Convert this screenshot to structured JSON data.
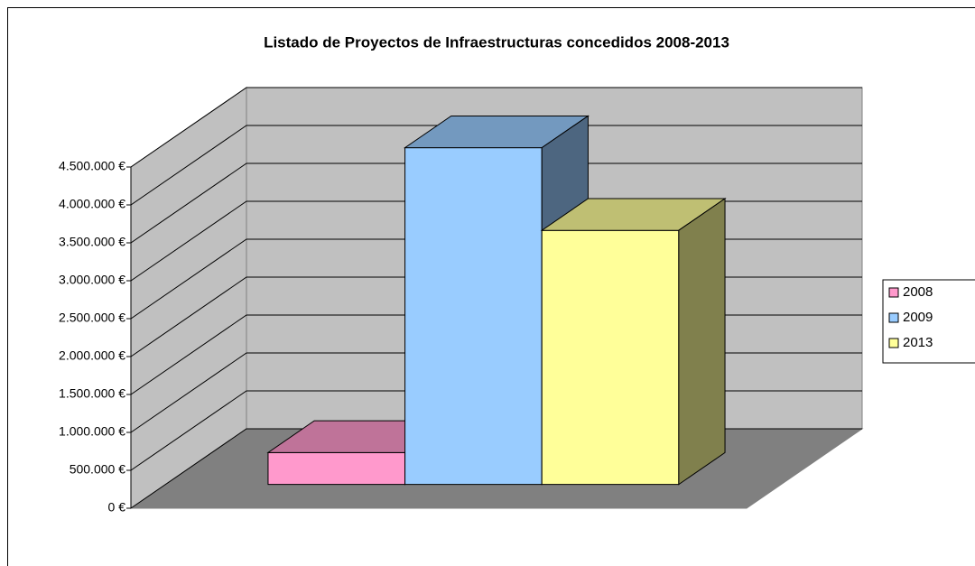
{
  "chart_data": {
    "type": "bar3d",
    "title": "Listado de Proyectos de Infraestructuras concedidos 2008-2013",
    "categories": [
      null
    ],
    "series": [
      {
        "name": "2008",
        "color": "#ff99cc",
        "values": [
          420000
        ]
      },
      {
        "name": "2009",
        "color": "#99ccff",
        "values": [
          4440000
        ]
      },
      {
        "name": "2013",
        "color": "#ffff99",
        "values": [
          3350000
        ]
      }
    ],
    "ylim": [
      0,
      4500000
    ],
    "yticks": [
      {
        "value": 0,
        "label": "0 €"
      },
      {
        "value": 500000,
        "label": "500.000 €"
      },
      {
        "value": 1000000,
        "label": "1.000.000 €"
      },
      {
        "value": 1500000,
        "label": "1.500.000 €"
      },
      {
        "value": 2000000,
        "label": "2.000.000 €"
      },
      {
        "value": 2500000,
        "label": "2.500.000 €"
      },
      {
        "value": 3000000,
        "label": "3.000.000 €"
      },
      {
        "value": 3500000,
        "label": "3.500.000 €"
      },
      {
        "value": 4000000,
        "label": "4.000.000 €"
      },
      {
        "value": 4500000,
        "label": "4.500.000 €"
      }
    ],
    "grid": true,
    "legend": "right",
    "wall_color": "#c0c0c0",
    "floor_color": "#808080"
  }
}
